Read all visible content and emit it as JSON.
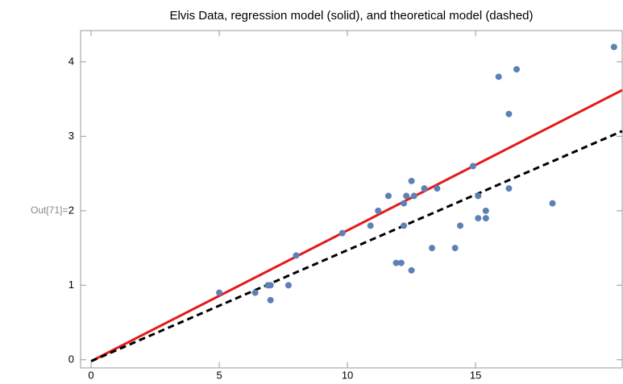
{
  "label": "Out[71]=",
  "chart_data": {
    "type": "scatter",
    "title": "Elvis Data, regression model (solid), and theoretical model (dashed)",
    "xlim": [
      -0.41,
      20.72
    ],
    "ylim": [
      -0.11,
      4.42
    ],
    "xticks": [
      0,
      5,
      10,
      15
    ],
    "yticks": [
      0,
      1,
      2,
      3,
      4
    ],
    "point_color": "#5e81b5",
    "x": [
      5.0,
      6.4,
      6.9,
      7.0,
      7.0,
      7.7,
      8.0,
      9.8,
      10.9,
      11.2,
      11.6,
      11.9,
      12.1,
      12.2,
      12.2,
      12.3,
      12.5,
      12.5,
      12.6,
      13.0,
      13.3,
      13.5,
      14.2,
      14.4,
      14.9,
      15.1,
      15.1,
      15.4,
      15.4,
      15.9,
      16.3,
      16.3,
      16.6,
      18.0,
      20.4
    ],
    "values": [
      0.9,
      0.9,
      1.0,
      1.0,
      0.8,
      1.0,
      1.4,
      1.7,
      1.8,
      2.0,
      2.2,
      1.3,
      1.3,
      2.1,
      1.8,
      2.2,
      1.2,
      2.4,
      2.2,
      2.3,
      1.5,
      2.3,
      1.5,
      1.8,
      2.6,
      2.2,
      1.9,
      2.0,
      1.9,
      3.8,
      3.3,
      2.3,
      3.9,
      2.1,
      4.2
    ],
    "lines": [
      {
        "x": [
          0,
          20.72
        ],
        "values": [
          -0.02,
          3.62
        ],
        "color": "#e41a1c",
        "dashed": false
      },
      {
        "x": [
          0,
          20.72
        ],
        "values": [
          -0.02,
          3.07
        ],
        "color": "#000000",
        "dashed": true
      }
    ]
  }
}
